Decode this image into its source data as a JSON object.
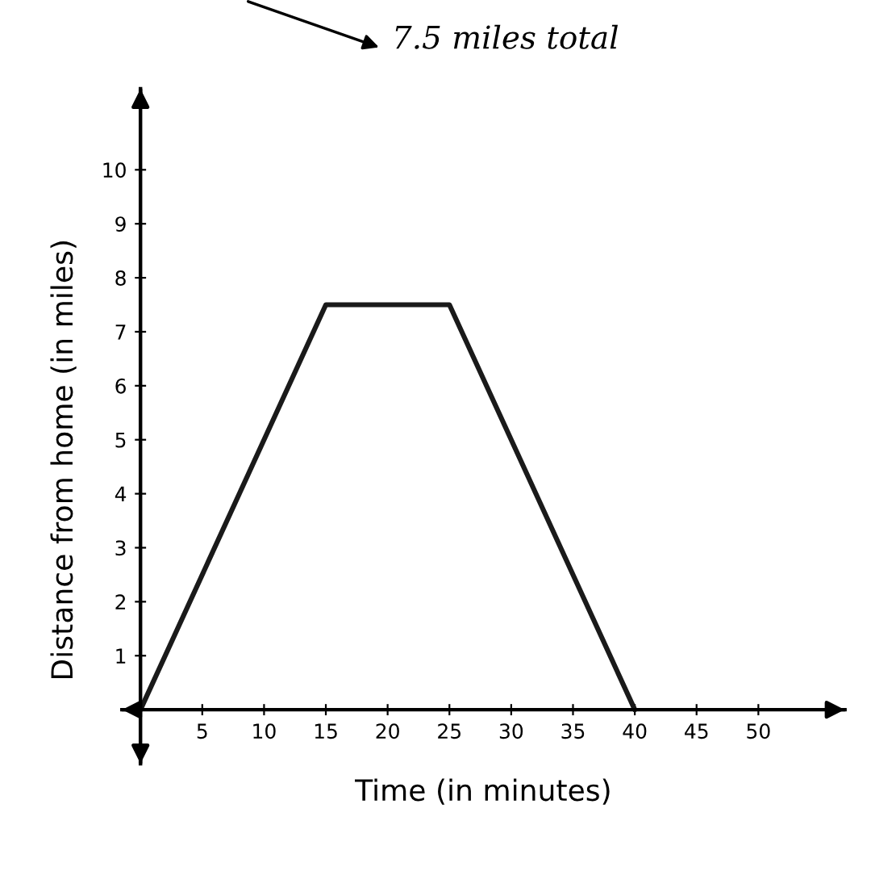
{
  "chart_data": {
    "type": "line",
    "xlabel": "Time (in minutes)",
    "ylabel": "Distance from home (in miles)",
    "x": [
      0,
      15,
      25,
      40
    ],
    "series": [
      {
        "color": "#1a1a1a",
        "values": [
          0,
          7.5,
          7.5,
          0
        ]
      }
    ],
    "xlim": [
      -1.5,
      57
    ],
    "ylim": [
      -1,
      11.5
    ],
    "xticks": [
      5,
      10,
      15,
      20,
      25,
      30,
      35,
      40,
      45,
      50
    ],
    "yticks": [
      1,
      2,
      3,
      4,
      5,
      6,
      7,
      8,
      9,
      10
    ],
    "annotations": [
      "7.5 miles total"
    ],
    "grid": false,
    "legend": false,
    "marker": "none",
    "line_style": "solid"
  }
}
